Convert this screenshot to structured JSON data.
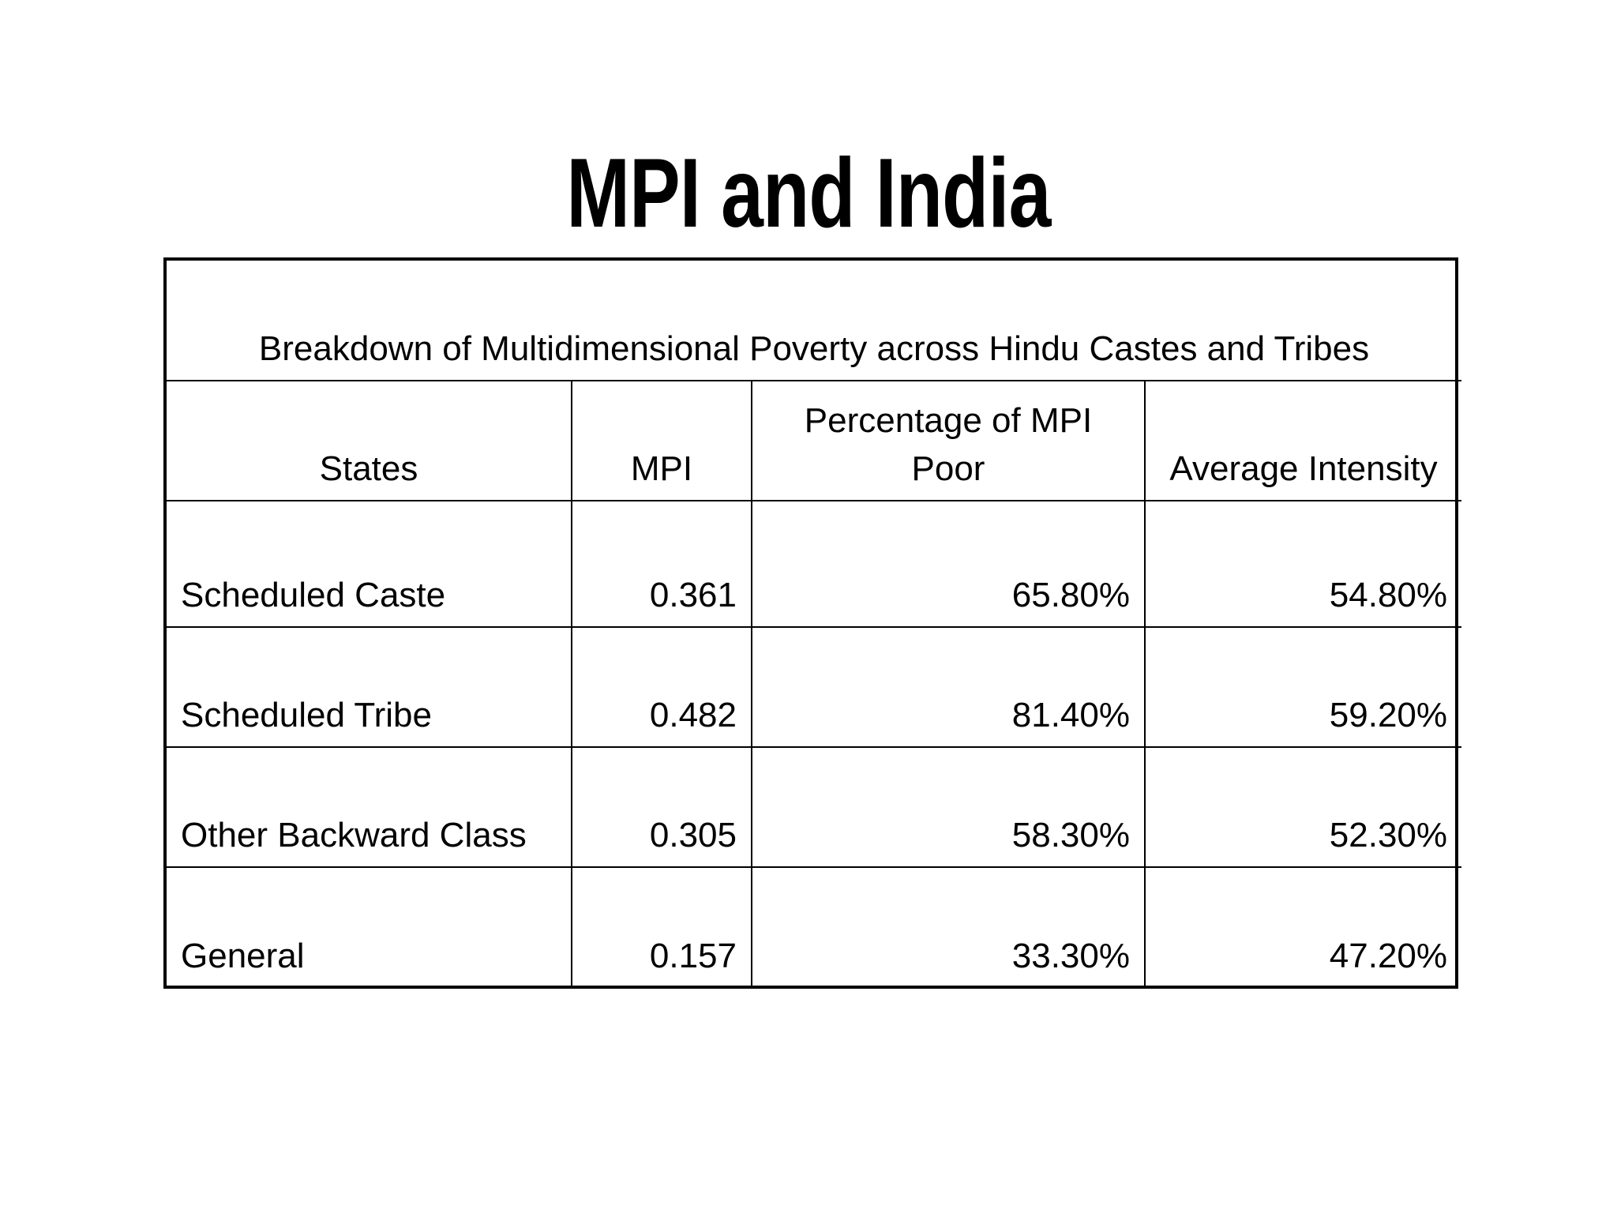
{
  "slide": {
    "title": "MPI and India"
  },
  "table": {
    "caption": "Breakdown of Multidimensional Poverty across Hindu Castes and Tribes",
    "headers": [
      "States",
      "MPI",
      "Percentage of MPI Poor",
      "Average Intensity"
    ],
    "rows": [
      {
        "group": "Scheduled Caste",
        "mpi": "0.361",
        "percent_poor": "65.80%",
        "avg_intensity": "54.80%"
      },
      {
        "group": "Scheduled Tribe",
        "mpi": "0.482",
        "percent_poor": "81.40%",
        "avg_intensity": "59.20%"
      },
      {
        "group": "Other Backward Class",
        "mpi": "0.305",
        "percent_poor": "58.30%",
        "avg_intensity": "52.30%"
      },
      {
        "group": "General",
        "mpi": "0.157",
        "percent_poor": "33.30%",
        "avg_intensity": "47.20%"
      }
    ]
  }
}
